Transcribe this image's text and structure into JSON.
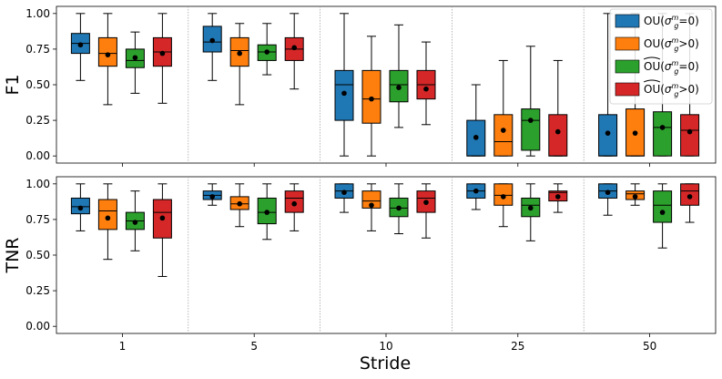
{
  "chart_data": {
    "type": "box",
    "xlabel": "Stride",
    "categories": [
      "1",
      "5",
      "10",
      "25",
      "50"
    ],
    "legend": {
      "placement": "top-right",
      "entries": [
        {
          "base": "OU",
          "cond": "=0",
          "hat": false,
          "color": "#1f77b4"
        },
        {
          "base": "OU",
          "cond": ">0",
          "hat": false,
          "color": "#ff7f0e"
        },
        {
          "base": "OU",
          "cond": "=0",
          "hat": true,
          "color": "#2ca02c"
        },
        {
          "base": "OU",
          "cond": ">0",
          "hat": true,
          "color": "#d62728"
        }
      ]
    },
    "panels": [
      {
        "ylabel": "F1",
        "ylim": [
          -0.05,
          1.05
        ],
        "yticks": [
          "0.00",
          "0.25",
          "0.50",
          "0.75",
          "1.00"
        ],
        "series": [
          {
            "name": "OU (=0)",
            "stats": [
              {
                "whislo": 0.53,
                "q1": 0.72,
                "med": 0.79,
                "q3": 0.86,
                "whishi": 1.0,
                "mean": 0.78
              },
              {
                "whislo": 0.53,
                "q1": 0.73,
                "med": 0.8,
                "q3": 0.91,
                "whishi": 1.0,
                "mean": 0.81
              },
              {
                "whislo": 0.0,
                "q1": 0.25,
                "med": 0.5,
                "q3": 0.6,
                "whishi": 1.0,
                "mean": 0.44
              },
              {
                "whislo": 0.0,
                "q1": 0.0,
                "med": 0.0,
                "q3": 0.25,
                "whishi": 0.5,
                "mean": 0.13
              },
              {
                "whislo": 0.0,
                "q1": 0.0,
                "med": 0.0,
                "q3": 0.29,
                "whishi": 1.0,
                "mean": 0.16
              }
            ]
          },
          {
            "name": "OU (>0)",
            "stats": [
              {
                "whislo": 0.36,
                "q1": 0.63,
                "med": 0.72,
                "q3": 0.83,
                "whishi": 1.0,
                "mean": 0.71
              },
              {
                "whislo": 0.36,
                "q1": 0.63,
                "med": 0.74,
                "q3": 0.83,
                "whishi": 0.93,
                "mean": 0.72
              },
              {
                "whislo": 0.0,
                "q1": 0.23,
                "med": 0.4,
                "q3": 0.6,
                "whishi": 0.84,
                "mean": 0.4
              },
              {
                "whislo": 0.0,
                "q1": 0.0,
                "med": 0.1,
                "q3": 0.29,
                "whishi": 0.67,
                "mean": 0.18
              },
              {
                "whislo": 0.0,
                "q1": 0.0,
                "med": 0.0,
                "q3": 0.33,
                "whishi": 1.0,
                "mean": 0.16
              }
            ]
          },
          {
            "name": "OU hat (=0)",
            "stats": [
              {
                "whislo": 0.44,
                "q1": 0.62,
                "med": 0.67,
                "q3": 0.75,
                "whishi": 0.87,
                "mean": 0.69
              },
              {
                "whislo": 0.57,
                "q1": 0.67,
                "med": 0.73,
                "q3": 0.78,
                "whishi": 0.93,
                "mean": 0.73
              },
              {
                "whislo": 0.2,
                "q1": 0.38,
                "med": 0.5,
                "q3": 0.6,
                "whishi": 0.92,
                "mean": 0.48
              },
              {
                "whislo": 0.0,
                "q1": 0.04,
                "med": 0.25,
                "q3": 0.33,
                "whishi": 0.77,
                "mean": 0.25
              },
              {
                "whislo": 0.0,
                "q1": 0.0,
                "med": 0.2,
                "q3": 0.31,
                "whishi": 1.0,
                "mean": 0.2
              }
            ]
          },
          {
            "name": "OU hat (>0)",
            "stats": [
              {
                "whislo": 0.37,
                "q1": 0.63,
                "med": 0.73,
                "q3": 0.83,
                "whishi": 1.0,
                "mean": 0.72
              },
              {
                "whislo": 0.47,
                "q1": 0.67,
                "med": 0.75,
                "q3": 0.83,
                "whishi": 1.0,
                "mean": 0.76
              },
              {
                "whislo": 0.22,
                "q1": 0.4,
                "med": 0.5,
                "q3": 0.6,
                "whishi": 0.8,
                "mean": 0.47
              },
              {
                "whislo": 0.0,
                "q1": 0.0,
                "med": 0.0,
                "q3": 0.29,
                "whishi": 0.67,
                "mean": 0.17
              },
              {
                "whislo": 0.0,
                "q1": 0.0,
                "med": 0.18,
                "q3": 0.29,
                "whishi": 1.0,
                "mean": 0.17
              }
            ]
          }
        ]
      },
      {
        "ylabel": "TNR",
        "ylim": [
          -0.05,
          1.05
        ],
        "yticks": [
          "0.00",
          "0.25",
          "0.50",
          "0.75",
          "1.00"
        ],
        "series": [
          {
            "name": "OU (=0)",
            "stats": [
              {
                "whislo": 0.67,
                "q1": 0.79,
                "med": 0.84,
                "q3": 0.9,
                "whishi": 1.0,
                "mean": 0.83
              },
              {
                "whislo": 0.85,
                "q1": 0.89,
                "med": 0.92,
                "q3": 0.95,
                "whishi": 1.0,
                "mean": 0.91
              },
              {
                "whislo": 0.8,
                "q1": 0.9,
                "med": 0.95,
                "q3": 1.0,
                "whishi": 1.0,
                "mean": 0.94
              },
              {
                "whislo": 0.82,
                "q1": 0.9,
                "med": 0.95,
                "q3": 1.0,
                "whishi": 1.0,
                "mean": 0.95
              },
              {
                "whislo": 0.78,
                "q1": 0.9,
                "med": 0.95,
                "q3": 1.0,
                "whishi": 1.0,
                "mean": 0.94
              }
            ]
          },
          {
            "name": "OU (>0)",
            "stats": [
              {
                "whislo": 0.47,
                "q1": 0.68,
                "med": 0.81,
                "q3": 0.89,
                "whishi": 1.0,
                "mean": 0.76
              },
              {
                "whislo": 0.7,
                "q1": 0.82,
                "med": 0.86,
                "q3": 0.91,
                "whishi": 1.0,
                "mean": 0.86
              },
              {
                "whislo": 0.67,
                "q1": 0.83,
                "med": 0.88,
                "q3": 0.95,
                "whishi": 1.0,
                "mean": 0.85
              },
              {
                "whislo": 0.7,
                "q1": 0.85,
                "med": 0.92,
                "q3": 1.0,
                "whishi": 1.0,
                "mean": 0.91
              },
              {
                "whislo": 0.85,
                "q1": 0.89,
                "med": 0.93,
                "q3": 0.95,
                "whishi": 1.0,
                "mean": 0.91
              }
            ]
          },
          {
            "name": "OU hat (=0)",
            "stats": [
              {
                "whislo": 0.53,
                "q1": 0.68,
                "med": 0.74,
                "q3": 0.8,
                "whishi": 0.95,
                "mean": 0.73
              },
              {
                "whislo": 0.61,
                "q1": 0.72,
                "med": 0.8,
                "q3": 0.9,
                "whishi": 1.0,
                "mean": 0.8
              },
              {
                "whislo": 0.65,
                "q1": 0.77,
                "med": 0.83,
                "q3": 0.9,
                "whishi": 1.0,
                "mean": 0.83
              },
              {
                "whislo": 0.6,
                "q1": 0.77,
                "med": 0.85,
                "q3": 0.9,
                "whishi": 1.0,
                "mean": 0.83
              },
              {
                "whislo": 0.55,
                "q1": 0.73,
                "med": 0.85,
                "q3": 0.95,
                "whishi": 1.0,
                "mean": 0.8
              }
            ]
          },
          {
            "name": "OU hat (>0)",
            "stats": [
              {
                "whislo": 0.35,
                "q1": 0.62,
                "med": 0.8,
                "q3": 0.89,
                "whishi": 1.0,
                "mean": 0.76
              },
              {
                "whislo": 0.67,
                "q1": 0.8,
                "med": 0.9,
                "q3": 0.95,
                "whishi": 1.0,
                "mean": 0.86
              },
              {
                "whislo": 0.62,
                "q1": 0.8,
                "med": 0.9,
                "q3": 0.95,
                "whishi": 1.0,
                "mean": 0.87
              },
              {
                "whislo": 0.8,
                "q1": 0.88,
                "med": 0.94,
                "q3": 0.95,
                "whishi": 1.0,
                "mean": 0.91
              },
              {
                "whislo": 0.73,
                "q1": 0.85,
                "med": 0.95,
                "q3": 1.0,
                "whishi": 1.0,
                "mean": 0.91
              }
            ]
          }
        ]
      }
    ]
  }
}
